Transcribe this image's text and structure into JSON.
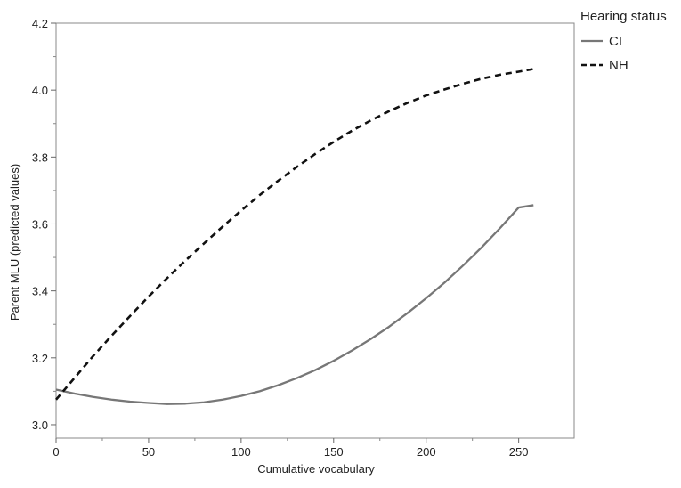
{
  "chart_data": {
    "type": "line",
    "xlabel": "Cumulative vocabulary",
    "ylabel": "Parent MLU (predicted values)",
    "xlim": [
      0,
      280
    ],
    "ylim": [
      2.96,
      4.2
    ],
    "x_ticks": [
      0,
      50,
      100,
      150,
      200,
      250
    ],
    "y_ticks": [
      3.0,
      3.2,
      3.4,
      3.6,
      3.8,
      4.0,
      4.2
    ],
    "y_tick_labels": [
      "3.0",
      "3.2",
      "3.4",
      "3.6",
      "3.8",
      "4.0",
      "4.2"
    ],
    "grid": false,
    "legend": {
      "title": "Hearing status",
      "position": "outside-right-top"
    },
    "series": [
      {
        "name": "CI",
        "style": "solid",
        "color": "#777777",
        "x": [
          0,
          10,
          20,
          30,
          40,
          50,
          60,
          70,
          80,
          90,
          100,
          110,
          120,
          130,
          140,
          150,
          160,
          170,
          180,
          190,
          200,
          210,
          220,
          230,
          240,
          250,
          258
        ],
        "y": [
          3.105,
          3.093,
          3.083,
          3.075,
          3.069,
          3.065,
          3.062,
          3.063,
          3.067,
          3.075,
          3.086,
          3.1,
          3.118,
          3.139,
          3.163,
          3.191,
          3.222,
          3.256,
          3.293,
          3.334,
          3.378,
          3.425,
          3.476,
          3.53,
          3.588,
          3.649,
          3.656
        ]
      },
      {
        "name": "NH",
        "style": "dashed",
        "color": "#111111",
        "x": [
          0,
          10,
          20,
          30,
          40,
          50,
          60,
          70,
          80,
          90,
          100,
          110,
          120,
          130,
          140,
          150,
          160,
          170,
          180,
          190,
          200,
          210,
          220,
          230,
          240,
          250,
          258
        ],
        "y": [
          3.075,
          3.14,
          3.205,
          3.266,
          3.325,
          3.383,
          3.438,
          3.491,
          3.542,
          3.592,
          3.64,
          3.686,
          3.729,
          3.77,
          3.809,
          3.845,
          3.879,
          3.909,
          3.937,
          3.962,
          3.984,
          4.002,
          4.019,
          4.034,
          4.046,
          4.055,
          4.063
        ]
      }
    ]
  }
}
